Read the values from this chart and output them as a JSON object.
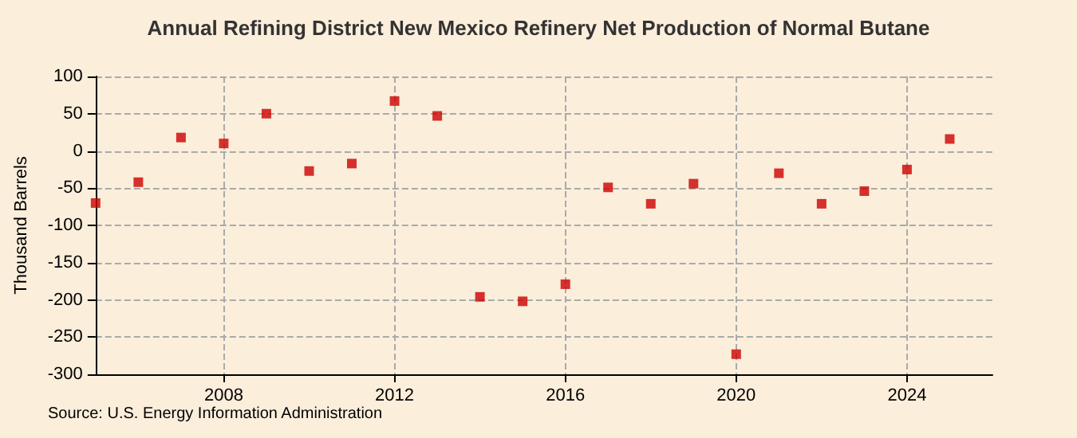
{
  "chart_data": {
    "type": "scatter",
    "title": "Annual Refining District New Mexico Refinery Net Production of Normal Butane",
    "ylabel": "Thousand Barrels",
    "annotations": [
      "Source: U.S. Energy Information Administration"
    ],
    "x": [
      2005,
      2006,
      2007,
      2008,
      2009,
      2010,
      2011,
      2012,
      2013,
      2014,
      2015,
      2016,
      2017,
      2018,
      2019,
      2020,
      2021,
      2022,
      2023,
      2024,
      2025
    ],
    "series": [
      {
        "color": "#cc0000",
        "values": [
          -70,
          -42,
          18,
          10,
          50,
          -27,
          -17,
          67,
          47,
          -196,
          -202,
          -179,
          -49,
          -71,
          -44,
          -273,
          -30,
          -71,
          -54,
          -25,
          16
        ]
      }
    ],
    "xlim": [
      2005,
      2026
    ],
    "xticks": [
      2008,
      2012,
      2016,
      2020,
      2024
    ],
    "ylim": [
      -300,
      100
    ],
    "yticks": [
      -300,
      -250,
      -200,
      -150,
      -100,
      -50,
      0,
      50,
      100
    ],
    "grid": true,
    "marker": "square"
  }
}
